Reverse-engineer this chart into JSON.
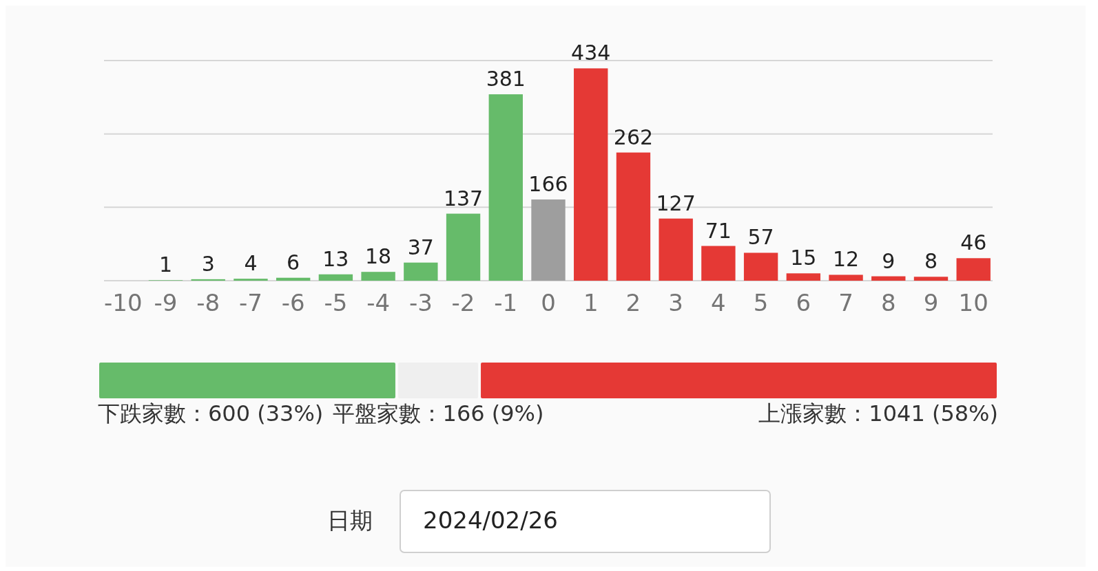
{
  "chart_data": [
    {
      "type": "bar",
      "categories": [
        "-10",
        "-9",
        "-8",
        "-7",
        "-6",
        "-5",
        "-4",
        "-3",
        "-2",
        "-1",
        "0",
        "1",
        "2",
        "3",
        "4",
        "5",
        "6",
        "7",
        "8",
        "9",
        "10"
      ],
      "values": [
        0,
        1,
        3,
        4,
        6,
        13,
        18,
        37,
        137,
        381,
        166,
        434,
        262,
        127,
        71,
        57,
        15,
        12,
        9,
        8,
        46
      ],
      "value_labels": [
        null,
        "1",
        "3",
        "4",
        "6",
        "13",
        "18",
        "37",
        "137",
        "381",
        "166",
        "434",
        "262",
        "127",
        "71",
        "57",
        "15",
        "12",
        "9",
        "8",
        "46"
      ],
      "colors": [
        "#66bb6a",
        "#66bb6a",
        "#66bb6a",
        "#66bb6a",
        "#66bb6a",
        "#66bb6a",
        "#66bb6a",
        "#66bb6a",
        "#66bb6a",
        "#66bb6a",
        "#9e9e9e",
        "#e53935",
        "#e53935",
        "#e53935",
        "#e53935",
        "#e53935",
        "#e53935",
        "#e53935",
        "#e53935",
        "#e53935",
        "#e53935"
      ],
      "ylim": [
        0,
        450
      ],
      "yticks": [
        {
          "value": 0,
          "label": null
        },
        {
          "value": 150,
          "label": null
        },
        {
          "value": 300,
          "label": null
        },
        {
          "value": 450,
          "label": null
        }
      ],
      "grid": "y",
      "tick_labels": "x"
    },
    {
      "type": "bar",
      "orientation": "horizontal",
      "stacked": true,
      "categories": [
        null
      ],
      "series": [
        {
          "color": "#66bb6a",
          "values": [
            600
          ],
          "value_labels": [
            "下跌家數：600 (33%)"
          ]
        },
        {
          "color": "#efefef",
          "values": [
            166
          ],
          "value_labels": [
            "平盤家數：166 (9%)"
          ]
        },
        {
          "color": "#e53935",
          "values": [
            1041
          ],
          "value_labels": [
            "上漲家數：1041 (58%)"
          ]
        }
      ],
      "annotations": [
        "日期",
        "2024/02/26"
      ]
    }
  ]
}
